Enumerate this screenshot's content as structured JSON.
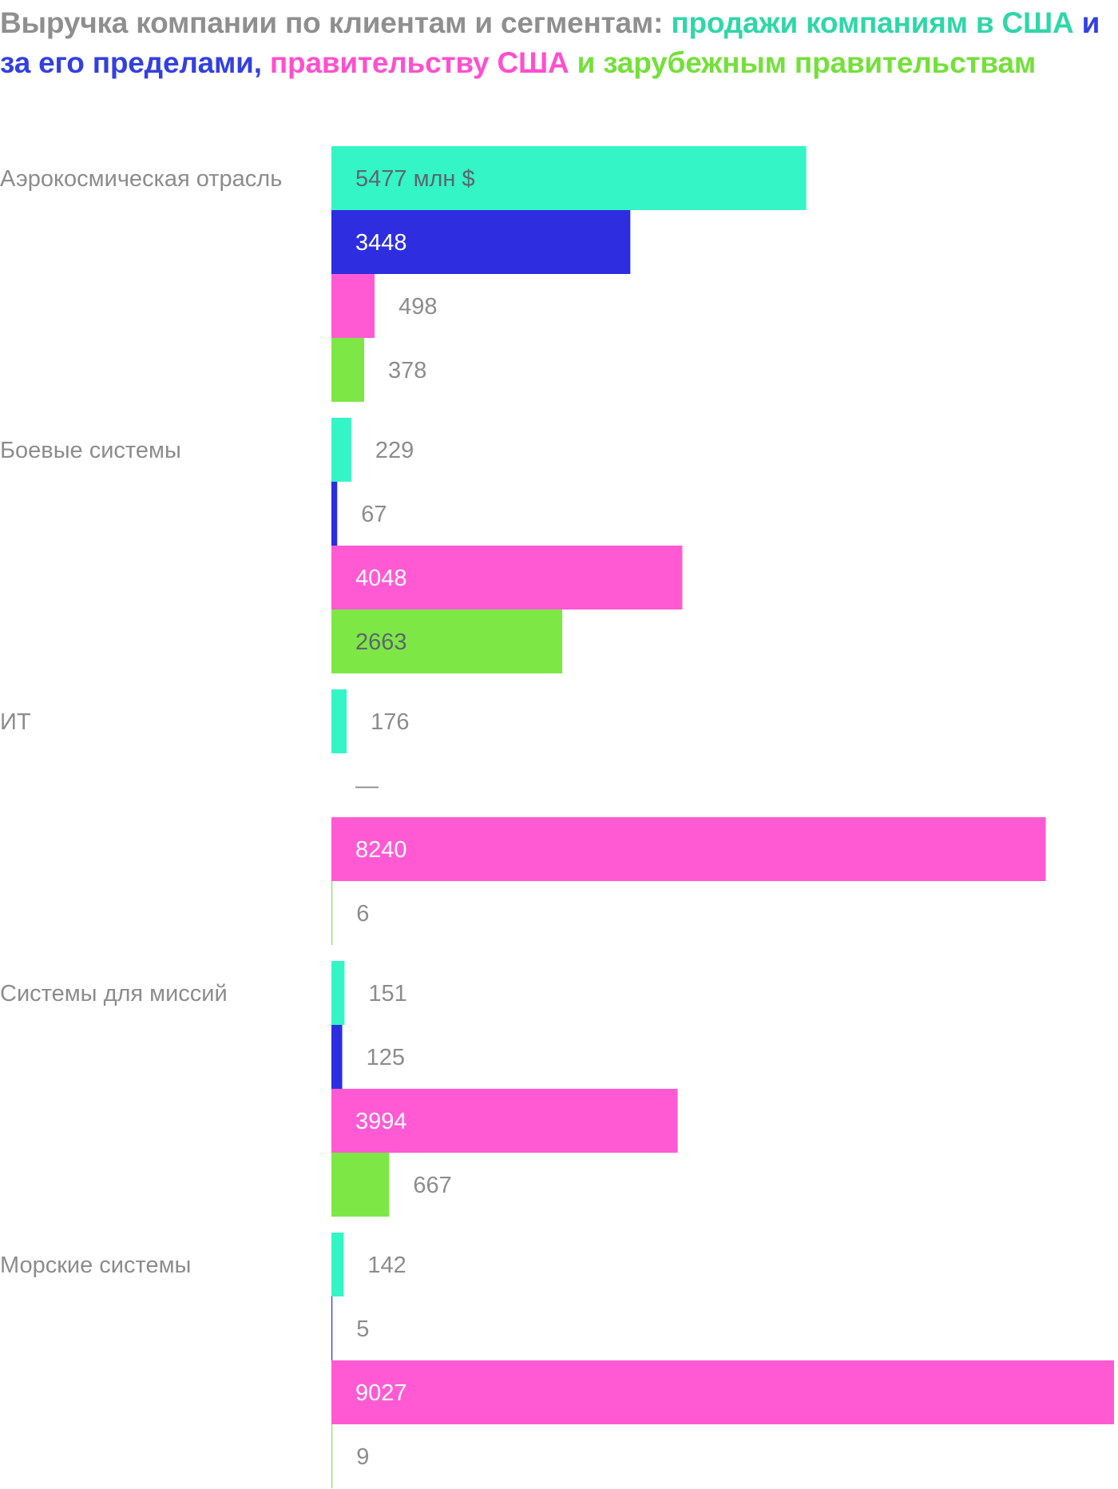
{
  "title_parts": [
    {
      "text": "Выручка компании по клиентам и сегментам: ",
      "color": "#8f8f8f"
    },
    {
      "text": "продажи компаниям в США ",
      "color": "#2fd6a8"
    },
    {
      "text": "и за его пределами, ",
      "color": "#3340e0"
    },
    {
      "text": "правительству США ",
      "color": "#ff4fcf"
    },
    {
      "text": "и зарубежным правительствам",
      "color": "#74e03a"
    }
  ],
  "chart_data": {
    "type": "bar",
    "orientation": "horizontal",
    "title": "Выручка компании по клиентам и сегментам: продажи компаниям в США и за его пределами, правительству США и зарубежным правительствам",
    "unit": "млн $",
    "categories": [
      "Аэрокосмическая отрасль",
      "Боевые системы",
      "ИТ",
      "Системы для миссий",
      "Морские системы"
    ],
    "series": [
      {
        "name": "продажи компаниям в США",
        "color": "#33f5c6",
        "values": [
          5477,
          229,
          176,
          151,
          142
        ],
        "labels": [
          "5477 млн $",
          "229",
          "176",
          "151",
          "142"
        ]
      },
      {
        "name": "и за его пределами",
        "color": "#2e2ee0",
        "values": [
          3448,
          67,
          null,
          125,
          5
        ],
        "labels": [
          "3448",
          "67",
          "—",
          "125",
          "5"
        ]
      },
      {
        "name": "правительству США",
        "color": "#ff5ad4",
        "values": [
          498,
          4048,
          8240,
          3994,
          9027
        ],
        "labels": [
          "498",
          "4048",
          "8240",
          "3994",
          "9027"
        ]
      },
      {
        "name": "и зарубежным правительствам",
        "color": "#7de845",
        "values": [
          378,
          2663,
          6,
          667,
          9
        ],
        "labels": [
          "378",
          "2663",
          "6",
          "667",
          "9"
        ]
      }
    ],
    "xlim": [
      0,
      9027
    ],
    "grid": false,
    "legend": "title"
  }
}
